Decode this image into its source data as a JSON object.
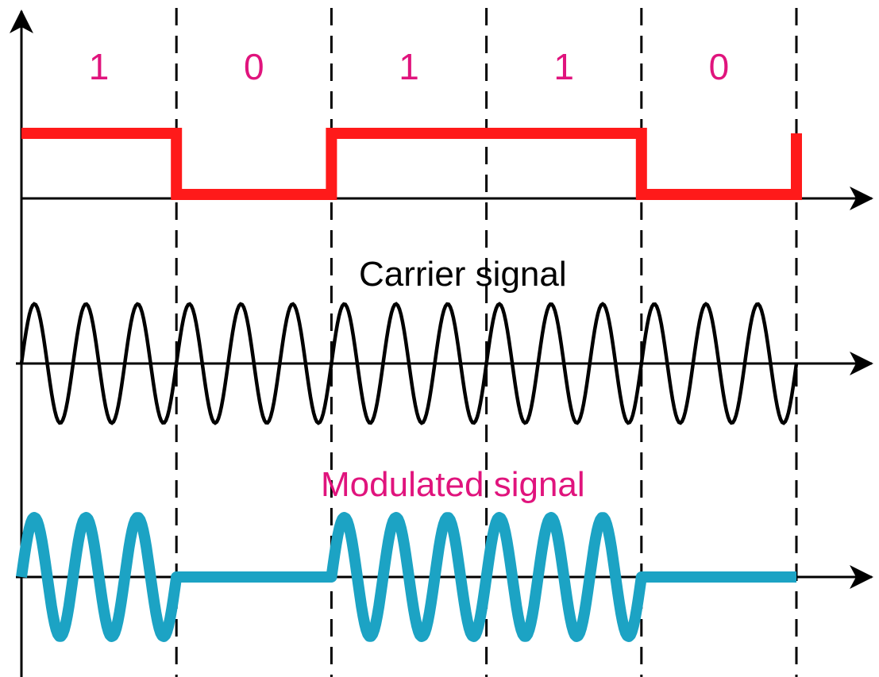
{
  "bits": [
    "1",
    "0",
    "1",
    "1",
    "0"
  ],
  "labels": {
    "carrier": "Carrier signal",
    "modulated": "Modulated signal"
  },
  "carrier_cycles_per_bit": 3,
  "colors": {
    "bit_label": "#e0147d",
    "digital_signal": "#ff1a1a",
    "carrier": "#000000",
    "modulated_label": "#e0147d",
    "modulated": "#1ca3c4",
    "axes": "#000000",
    "divider": "#000000"
  }
}
